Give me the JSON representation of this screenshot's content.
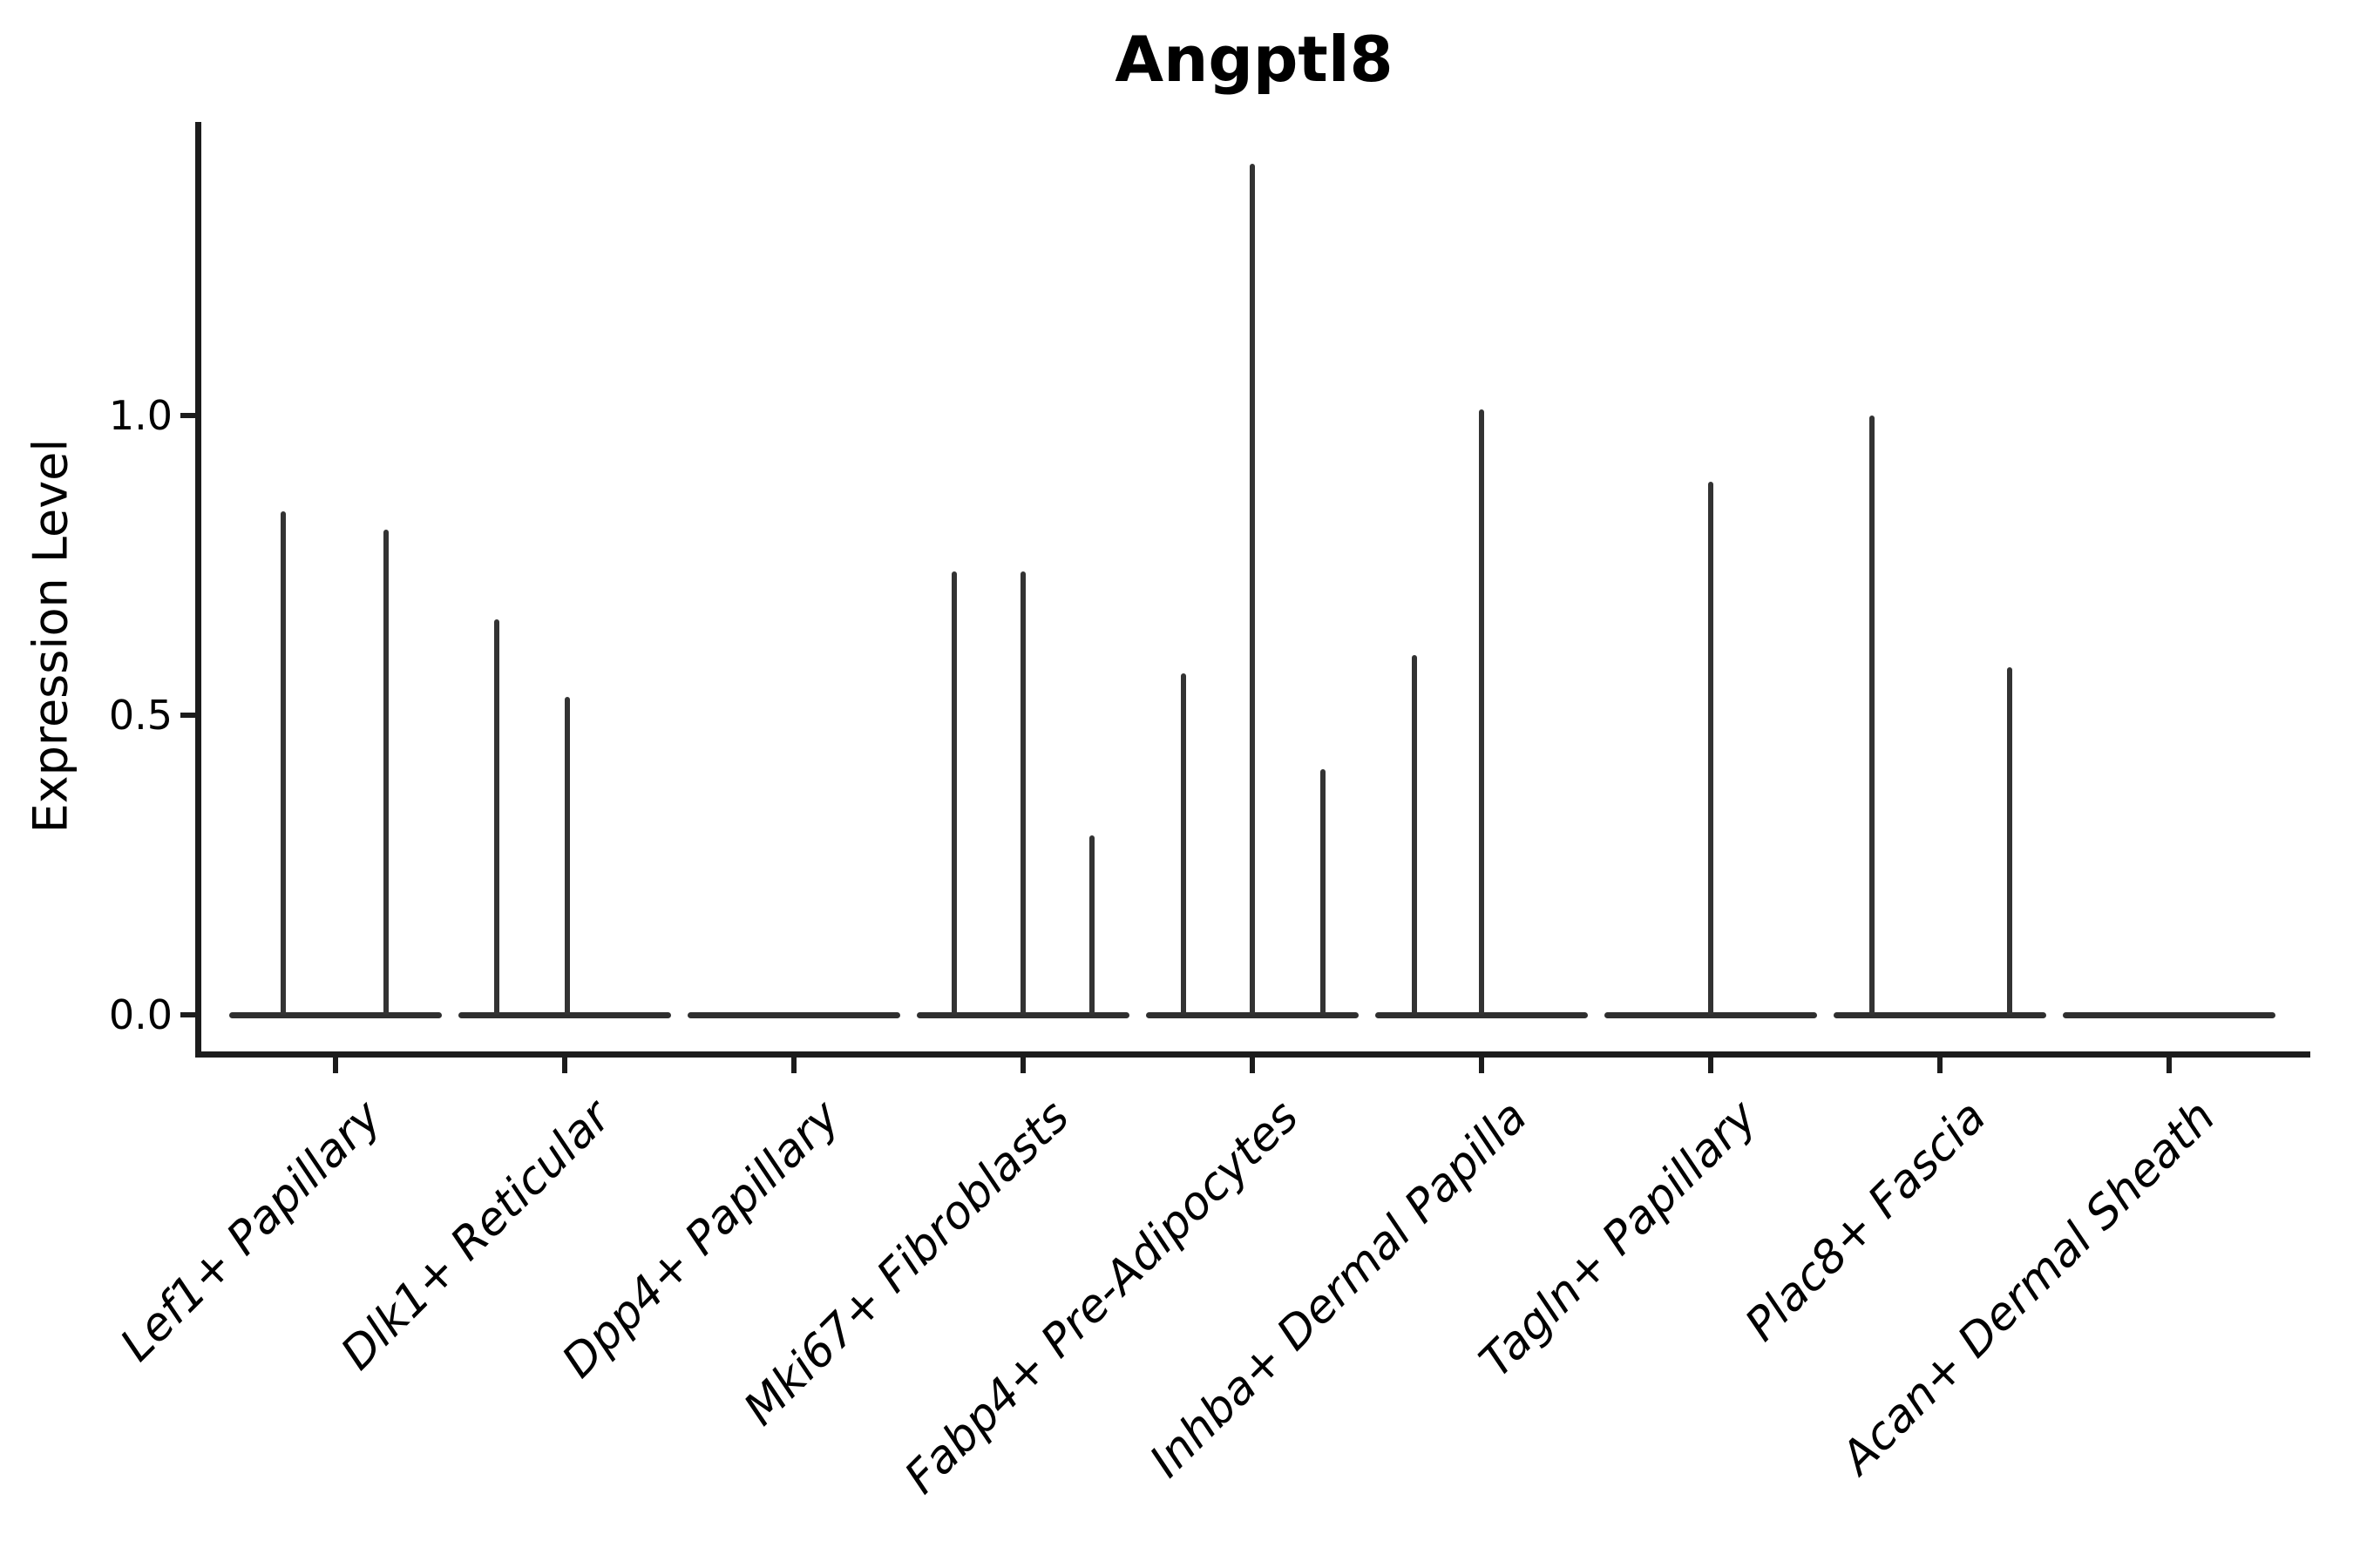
{
  "chart": {
    "title": "Angptl8",
    "ylabel": "Expression Level"
  },
  "chart_data": {
    "type": "violin",
    "title": "Angptl8",
    "xlabel": "",
    "ylabel": "Expression Level",
    "ylim": [
      -0.07,
      1.49
    ],
    "grid": false,
    "legend": "none",
    "line_color": "#333333",
    "axis_color": "#1c1c1c",
    "yticks": [
      {
        "label": "0.0",
        "value": 0.0
      },
      {
        "label": "0.5",
        "value": 0.5
      },
      {
        "label": "1.0",
        "value": 1.0
      }
    ],
    "categories": [
      "Lef1+ Papillary",
      "Dlk1+ Reticular",
      "Dpp4+ Papillary",
      "Mki67+ Fibroblasts",
      "Fabp4+ Pre-Adipocytes",
      "Inhba+ Dermal Papilla",
      "Tagln+ Papillary",
      "Plac8+ Fascia",
      "Acan+ Dermal Sheath"
    ],
    "series": [
      {
        "name": "Lef1+ Papillary",
        "baseline_value": 0,
        "spikes": [
          {
            "offset": -60,
            "value": 0.84
          },
          {
            "offset": 58,
            "value": 0.81
          }
        ]
      },
      {
        "name": "Dlk1+ Reticular",
        "baseline_value": 0,
        "spikes": [
          {
            "offset": -78,
            "value": 0.66
          },
          {
            "offset": 3,
            "value": 0.53
          }
        ]
      },
      {
        "name": "Dpp4+ Papillary",
        "baseline_value": 0,
        "spikes": []
      },
      {
        "name": "Mki67+ Fibroblasts",
        "baseline_value": 0,
        "spikes": [
          {
            "offset": -79,
            "value": 0.74
          },
          {
            "offset": 0,
            "value": 0.74
          },
          {
            "offset": 79,
            "value": 0.3
          }
        ]
      },
      {
        "name": "Fabp4+ Pre-Adipocytes",
        "baseline_value": 0,
        "spikes": [
          {
            "offset": -79,
            "value": 0.57
          },
          {
            "offset": 0,
            "value": 1.42
          },
          {
            "offset": 81,
            "value": 0.41
          }
        ]
      },
      {
        "name": "Inhba+ Dermal Papilla",
        "baseline_value": 0,
        "spikes": [
          {
            "offset": -77,
            "value": 0.6
          },
          {
            "offset": 0,
            "value": 1.01
          }
        ]
      },
      {
        "name": "Tagln+ Papillary",
        "baseline_value": 0,
        "spikes": [
          {
            "offset": 0,
            "value": 0.89
          }
        ]
      },
      {
        "name": "Plac8+ Fascia",
        "baseline_value": 0,
        "spikes": [
          {
            "offset": -78,
            "value": 1.0
          },
          {
            "offset": 80,
            "value": 0.58
          }
        ]
      },
      {
        "name": "Acan+ Dermal Sheath",
        "baseline_value": 0,
        "spikes": []
      }
    ]
  }
}
